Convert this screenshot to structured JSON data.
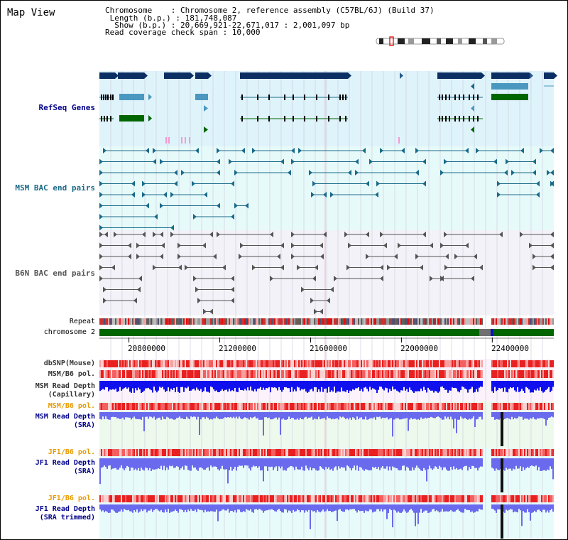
{
  "view": {
    "title": "Map View"
  },
  "info": {
    "chromosome_line": "Chromosome    : Chromosome 2, reference assembly (C57BL/6J) (Build 37)",
    "length_line": " Length (b.p.) : 181,748,087",
    "show_line": "  Show (b.p.) : 20,669,921-22,671,017 : 2,001,097 bp",
    "coverage_line": "Read coverage check span : 10,000"
  },
  "tracks": {
    "refseq": "RefSeq Genes",
    "msm_bac": "MSM BAC end pairs",
    "b6n_bac": "B6N BAC end pairs",
    "repeat": "Repeat",
    "chromosome": "chromosome 2",
    "dbsnp": "dbSNP(Mouse)",
    "msm_b6_pol": "MSM/B6 pol.",
    "msm_depth_cap": "MSM Read Depth\n(Capillary)",
    "msm_b6_pol2": "MSM/B6 pol.",
    "msm_depth_sra": "MSM Read Depth\n(SRA)",
    "jf1_b6_pol": "JF1/B6 pol.",
    "jf1_depth_sra": "JF1 Read Depth\n(SRA)",
    "jf1_b6_pol2": "JF1/B6 pol.",
    "jf1_depth_trim": "JF1 Read Depth\n(SRA trimmed)"
  },
  "axis": {
    "ticks": [
      {
        "pos": 20800000,
        "label": "20800000"
      },
      {
        "pos": 21200000,
        "label": "21200000"
      },
      {
        "pos": 21600000,
        "label": "21600000"
      },
      {
        "pos": 22000000,
        "label": "22000000"
      },
      {
        "pos": 22400000,
        "label": "22400000"
      }
    ],
    "start": 20669921,
    "end": 22671017
  },
  "colors": {
    "navy": "#0b2e63",
    "refseq_bg": "#dff3fb",
    "msm_bg": "#e7fafa",
    "b6n_bg": "#f2f2f8",
    "gene_light": "#4a98c0",
    "gene_green": "#006600",
    "msm_line": "#1a6a8a",
    "b6n_line": "#555555",
    "chrom_green": "#006600",
    "depth_blue": "#1010ee",
    "depth_lightblue": "#6a6aee",
    "orange": "#e89a00",
    "blue_label": "#00008b"
  }
}
